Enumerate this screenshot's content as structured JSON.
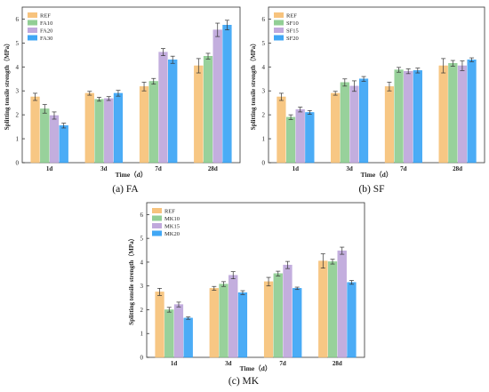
{
  "chart_data": [
    {
      "panel": "FA",
      "caption": "(a) FA",
      "type": "bar",
      "xlabel": "Time（d）",
      "ylabel": "Splitting tensile strength（MPa）",
      "ylim": [
        0,
        6.5
      ],
      "yticks": [
        0,
        1,
        2,
        3,
        4,
        5,
        6
      ],
      "categories": [
        "1d",
        "3d",
        "7d",
        "28d"
      ],
      "legend_position": "top-left",
      "series": [
        {
          "name": "REF",
          "color": "#f6bd6f",
          "values": [
            2.75,
            2.9,
            3.18,
            4.05
          ],
          "errors": [
            0.15,
            0.08,
            0.18,
            0.3
          ]
        },
        {
          "name": "FA10",
          "color": "#86c98a",
          "values": [
            2.25,
            2.65,
            3.4,
            4.45
          ],
          "errors": [
            0.18,
            0.08,
            0.12,
            0.12
          ]
        },
        {
          "name": "FA20",
          "color": "#b9a0d8",
          "values": [
            1.97,
            2.68,
            4.62,
            5.55
          ],
          "errors": [
            0.15,
            0.08,
            0.15,
            0.28
          ]
        },
        {
          "name": "FA30",
          "color": "#2b9df4",
          "values": [
            1.55,
            2.9,
            4.3,
            5.75
          ],
          "errors": [
            0.1,
            0.12,
            0.15,
            0.2
          ]
        }
      ]
    },
    {
      "panel": "SF",
      "caption": "(b) SF",
      "type": "bar",
      "xlabel": "Time（d）",
      "ylabel": "Splitting tensile strength（MPa）",
      "ylim": [
        0,
        6.5
      ],
      "yticks": [
        0,
        1,
        2,
        3,
        4,
        5,
        6
      ],
      "categories": [
        "1d",
        "3d",
        "7d",
        "28d"
      ],
      "legend_position": "top-left",
      "series": [
        {
          "name": "REF",
          "color": "#f6bd6f",
          "values": [
            2.75,
            2.9,
            3.18,
            4.05
          ],
          "errors": [
            0.15,
            0.08,
            0.18,
            0.3
          ]
        },
        {
          "name": "SF10",
          "color": "#86c98a",
          "values": [
            1.9,
            3.35,
            3.88,
            4.15
          ],
          "errors": [
            0.1,
            0.15,
            0.1,
            0.12
          ]
        },
        {
          "name": "SF15",
          "color": "#b9a0d8",
          "values": [
            2.22,
            3.2,
            3.82,
            4.05
          ],
          "errors": [
            0.1,
            0.22,
            0.1,
            0.2
          ]
        },
        {
          "name": "SF20",
          "color": "#2b9df4",
          "values": [
            2.1,
            3.5,
            3.85,
            4.3
          ],
          "errors": [
            0.08,
            0.1,
            0.1,
            0.08
          ]
        }
      ]
    },
    {
      "panel": "MK",
      "caption": "(c) MK",
      "type": "bar",
      "xlabel": "Time（d）",
      "ylabel": "Splitting tensile strength（MPa）",
      "ylim": [
        0,
        6.5
      ],
      "yticks": [
        0,
        1,
        2,
        3,
        4,
        5,
        6
      ],
      "categories": [
        "1d",
        "3d",
        "7d",
        "28d"
      ],
      "legend_position": "top-left",
      "series": [
        {
          "name": "REF",
          "color": "#f6bd6f",
          "values": [
            2.75,
            2.9,
            3.18,
            4.05
          ],
          "errors": [
            0.15,
            0.08,
            0.18,
            0.3
          ]
        },
        {
          "name": "MK10",
          "color": "#86c98a",
          "values": [
            2.0,
            3.08,
            3.52,
            4.02
          ],
          "errors": [
            0.1,
            0.1,
            0.1,
            0.1
          ]
        },
        {
          "name": "MK15",
          "color": "#b9a0d8",
          "values": [
            2.22,
            3.45,
            3.88,
            4.48
          ],
          "errors": [
            0.1,
            0.15,
            0.15,
            0.15
          ]
        },
        {
          "name": "MK20",
          "color": "#2b9df4",
          "values": [
            1.65,
            2.72,
            2.9,
            3.15
          ],
          "errors": [
            0.05,
            0.08,
            0.05,
            0.08
          ]
        }
      ]
    }
  ]
}
